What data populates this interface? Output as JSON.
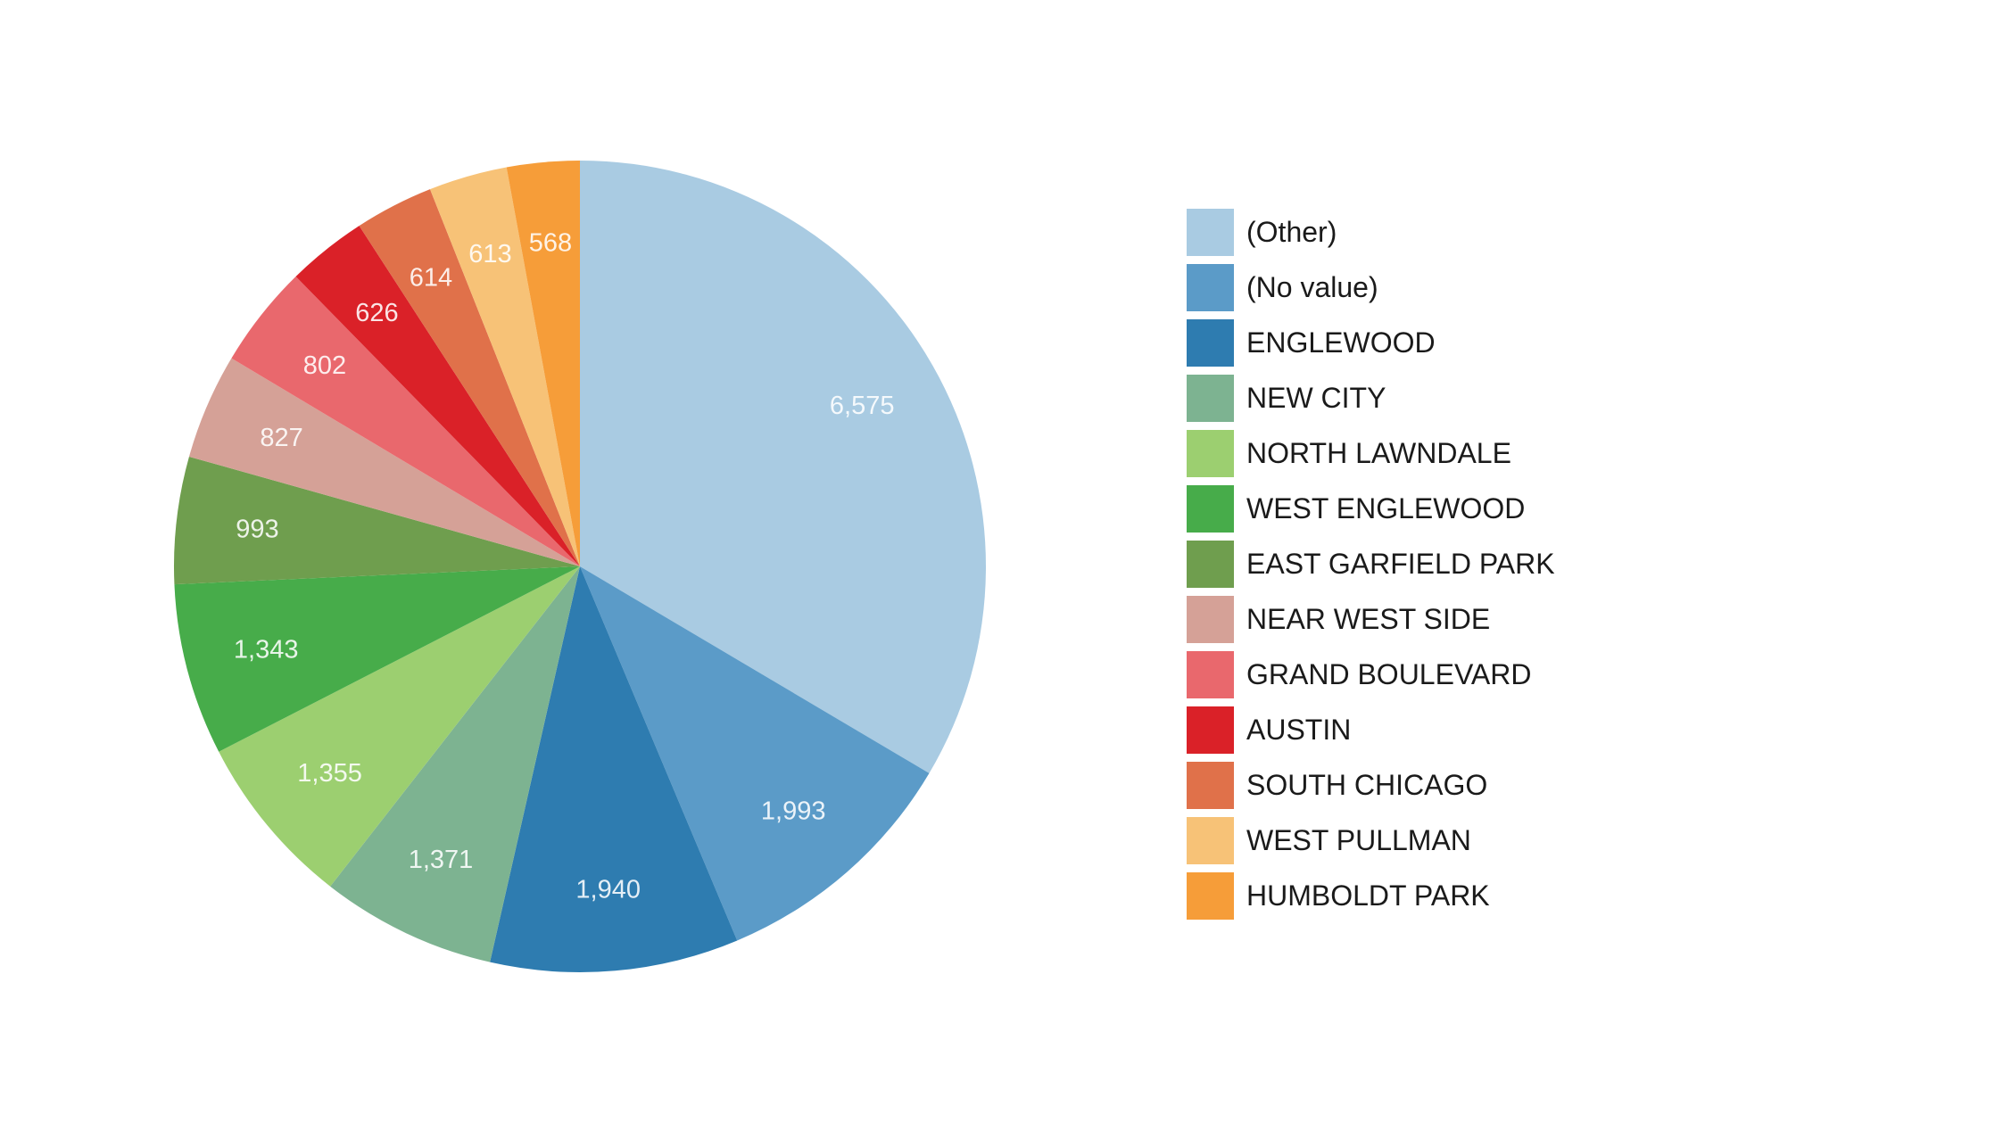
{
  "background_color": "#ffffff",
  "chart_data": {
    "type": "pie",
    "title": "",
    "legend_position": "right",
    "start_angle_deg": 0,
    "direction": "clockwise",
    "value_label_color": "rgba(255,255,255,0.88)",
    "legend_text_color": "#1a1a1a",
    "slices": [
      {
        "label": "(Other)",
        "value": 6575,
        "display_value": "6,575",
        "color": "#a9cbe2"
      },
      {
        "label": "(No value)",
        "value": 1993,
        "display_value": "1,993",
        "color": "#5b9bc8"
      },
      {
        "label": "ENGLEWOOD",
        "value": 1940,
        "display_value": "1,940",
        "color": "#2e7cb0"
      },
      {
        "label": "NEW CITY",
        "value": 1371,
        "display_value": "1,371",
        "color": "#7db391"
      },
      {
        "label": "NORTH LAWNDALE",
        "value": 1355,
        "display_value": "1,355",
        "color": "#9ccf70"
      },
      {
        "label": "WEST ENGLEWOOD",
        "value": 1343,
        "display_value": "1,343",
        "color": "#47ac4a"
      },
      {
        "label": "EAST GARFIELD PARK",
        "value": 993,
        "display_value": "993",
        "color": "#6f9e4e"
      },
      {
        "label": "NEAR WEST SIDE",
        "value": 827,
        "display_value": "827",
        "color": "#d5a197"
      },
      {
        "label": "GRAND BOULEVARD",
        "value": 802,
        "display_value": "802",
        "color": "#e9686d"
      },
      {
        "label": "AUSTIN",
        "value": 626,
        "display_value": "626",
        "color": "#da2128"
      },
      {
        "label": "SOUTH CHICAGO",
        "value": 614,
        "display_value": "614",
        "color": "#e0714a"
      },
      {
        "label": "WEST PULLMAN",
        "value": 613,
        "display_value": "613",
        "color": "#f7c277"
      },
      {
        "label": "HUMBOLDT PARK",
        "value": 568,
        "display_value": "568",
        "color": "#f69d39"
      }
    ]
  }
}
